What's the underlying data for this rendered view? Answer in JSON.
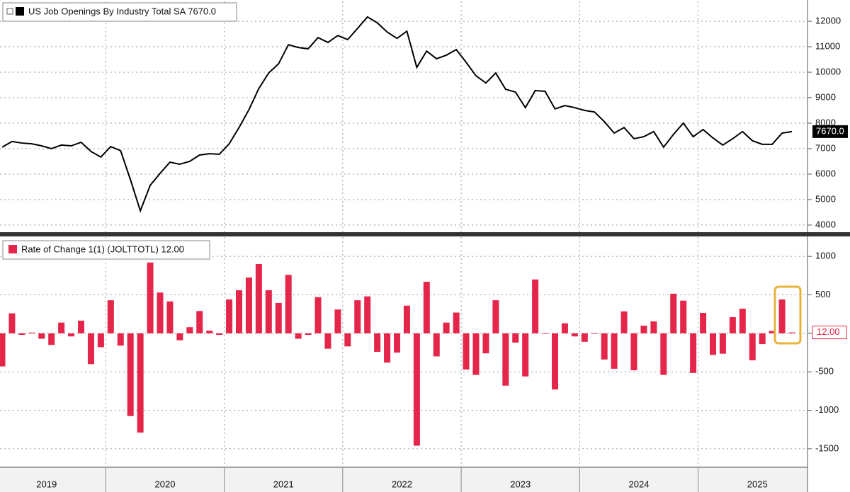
{
  "chart_data": [
    {
      "type": "line",
      "series": [
        {
          "name": "US Job Openings By Industry Total SA 7670.0",
          "color": "#000000",
          "values": [
            7060,
            7280,
            7220,
            7190,
            7110,
            7000,
            7140,
            7110,
            7250,
            6890,
            6670,
            7080,
            6920,
            5780,
            4560,
            5560,
            6030,
            6470,
            6390,
            6500,
            6750,
            6800,
            6780,
            7190,
            7830,
            8530,
            9360,
            9970,
            10330,
            11080,
            10970,
            10920,
            11360,
            11170,
            11440,
            11280,
            11720,
            12170,
            11940,
            11580,
            11330,
            11610,
            10190,
            10830,
            10530,
            10670,
            10890,
            10390,
            9860,
            9580,
            9970,
            9330,
            9220,
            8610,
            9280,
            9250,
            8560,
            8690,
            8610,
            8500,
            8440,
            8060,
            7610,
            7830,
            7390,
            7470,
            7670,
            7060,
            7560,
            8000,
            7470,
            7750,
            7420,
            7140,
            7390,
            7670,
            7310,
            7170,
            7170,
            7610,
            7670
          ],
          "last_value_label": "7670.0"
        }
      ],
      "ylim": [
        3720,
        12780
      ],
      "yticks": [
        4000,
        5000,
        6000,
        7000,
        8000,
        9000,
        10000,
        11000,
        12000
      ],
      "grid": true
    },
    {
      "type": "bar",
      "categories": [
        null,
        null,
        null,
        null,
        null,
        "2019",
        null,
        null,
        null,
        null,
        null,
        null,
        null,
        null,
        null,
        null,
        null,
        "2020",
        null,
        null,
        null,
        null,
        null,
        null,
        null,
        null,
        null,
        null,
        null,
        "2021",
        null,
        null,
        null,
        null,
        null,
        null,
        null,
        null,
        null,
        null,
        null,
        "2022",
        null,
        null,
        null,
        null,
        null,
        null,
        null,
        null,
        null,
        null,
        null,
        "2023",
        null,
        null,
        null,
        null,
        null,
        null,
        null,
        null,
        null,
        null,
        null,
        "2024",
        null,
        null,
        null,
        null,
        null,
        null,
        null,
        null,
        null,
        null,
        null,
        "2025",
        null,
        null,
        null
      ],
      "series": [
        {
          "name": "Rate of Change 1(1) (JOLTTOTL) 12.00",
          "color": "#e4264a",
          "values": [
            -430,
            260,
            -20,
            10,
            -70,
            -150,
            140,
            -40,
            165,
            -400,
            -180,
            430,
            -160,
            -1075,
            -1290,
            920,
            530,
            415,
            -90,
            80,
            290,
            35,
            -20,
            440,
            560,
            725,
            900,
            560,
            395,
            760,
            -70,
            -20,
            470,
            -200,
            310,
            -170,
            430,
            480,
            -240,
            -380,
            -250,
            360,
            -1460,
            670,
            -300,
            140,
            270,
            -470,
            -540,
            -260,
            430,
            -680,
            -120,
            -560,
            700,
            0,
            -730,
            130,
            -40,
            -110,
            0,
            -340,
            -460,
            285,
            -480,
            100,
            155,
            -540,
            515,
            425,
            -515,
            265,
            -280,
            -265,
            210,
            320,
            -350,
            -140,
            30,
            440,
            12
          ],
          "last_value_label": "12.00"
        }
      ],
      "ylim": [
        -1740,
        1250
      ],
      "yticks": [
        -1500,
        -1000,
        -500,
        0,
        500,
        1000
      ],
      "grid": true
    }
  ]
}
